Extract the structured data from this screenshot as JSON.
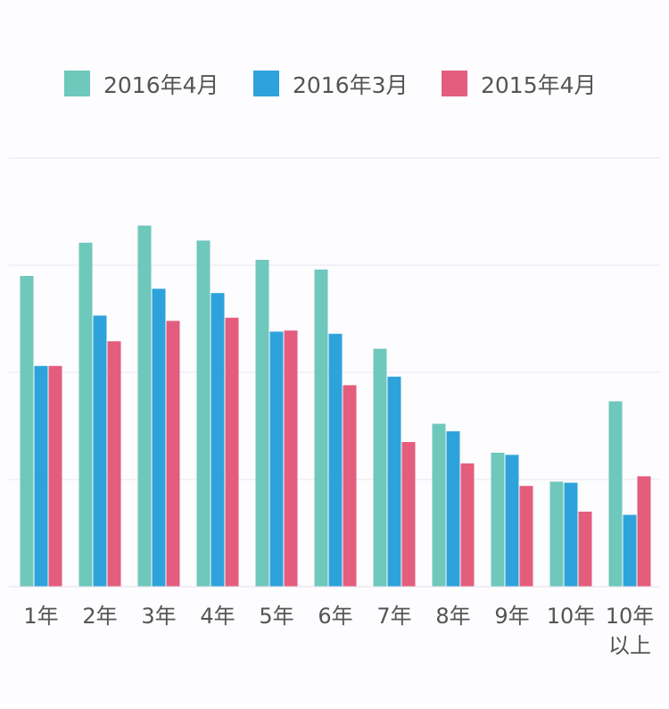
{
  "chart_data": {
    "type": "bar",
    "title": "",
    "xlabel": "",
    "ylabel": "",
    "grid": true,
    "legend_position": "top",
    "ylim": [
      0,
      400
    ],
    "yticks": [
      0,
      100,
      200,
      300,
      400
    ],
    "categories": [
      "1年",
      "2年",
      "3年",
      "4年",
      "5年",
      "6年",
      "7年",
      "8年",
      "9年",
      "10年",
      "10年以上"
    ],
    "category_lines": [
      [
        "1年"
      ],
      [
        "2年"
      ],
      [
        "3年"
      ],
      [
        "4年"
      ],
      [
        "5年"
      ],
      [
        "6年"
      ],
      [
        "7年"
      ],
      [
        "8年"
      ],
      [
        "9年"
      ],
      [
        "10年"
      ],
      [
        "10年",
        "以上"
      ]
    ],
    "series": [
      {
        "name": "2016年4月",
        "color": "#6ec8bc",
        "values": [
          290,
          321,
          337,
          323,
          305,
          296,
          222,
          152,
          125,
          98,
          173
        ]
      },
      {
        "name": "2016年3月",
        "color": "#2ea3db",
        "values": [
          206,
          253,
          278,
          274,
          238,
          236,
          196,
          145,
          123,
          97,
          67
        ]
      },
      {
        "name": "2015年4月",
        "color": "#e45d7d",
        "values": [
          206,
          229,
          248,
          251,
          239,
          188,
          135,
          115,
          94,
          70,
          103
        ]
      }
    ]
  }
}
